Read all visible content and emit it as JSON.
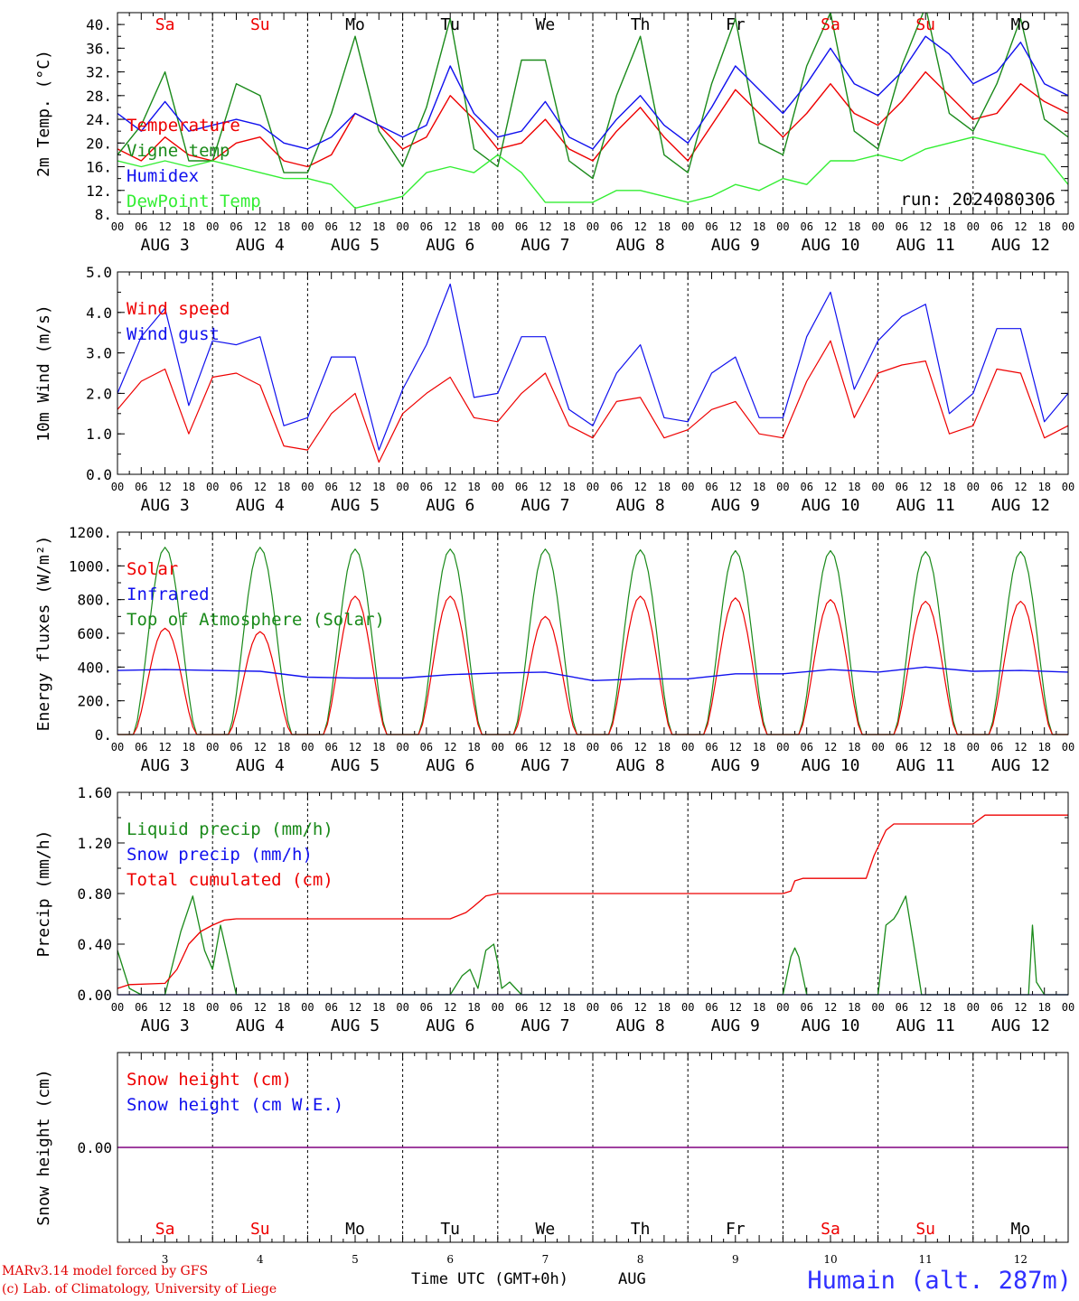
{
  "footer": {
    "model_line": "MARv3.14 model forced by GFS",
    "copyright_line": "(c) Lab. of Climatology, University of Liege",
    "xaxis_title": "Time UTC (GMT+0h)",
    "month": "AUG",
    "station": "Humain (alt. 287m)"
  },
  "colors": {
    "red": "#ee0000",
    "blue": "#1010ee",
    "green": "#1a8a1a",
    "lightgreen": "#33ee33",
    "purple": "#800080",
    "weekend": "#ee0000",
    "weekday": "#000000"
  },
  "time_axis": {
    "hour_ticks": [
      "00",
      "06",
      "12",
      "18"
    ],
    "last_tick": "00",
    "dates": [
      "AUG 3",
      "AUG 4",
      "AUG 5",
      "AUG 6",
      "AUG 7",
      "AUG 8",
      "AUG 9",
      "AUG 10",
      "AUG 11",
      "AUG 12"
    ],
    "weekdays": [
      "Sa",
      "Su",
      "Mo",
      "Tu",
      "We",
      "Th",
      "Fr",
      "Sa",
      "Su",
      "Mo"
    ],
    "weekend": [
      true,
      true,
      false,
      false,
      false,
      false,
      false,
      true,
      true,
      false
    ],
    "day_numbers": [
      "3",
      "4",
      "5",
      "6",
      "7",
      "8",
      "9",
      "10",
      "11",
      "12"
    ]
  },
  "chart_data": [
    {
      "type": "line",
      "ylabel": "2m Temp. (°C)",
      "ylim": [
        8,
        42
      ],
      "yticks": [
        "8.",
        "12.",
        "16.",
        "20.",
        "24.",
        "28.",
        "32.",
        "36.",
        "40."
      ],
      "ytick_values": [
        8,
        12,
        16,
        20,
        24,
        28,
        32,
        36,
        40
      ],
      "annotation": "run: 2024080306",
      "x_unit": "hours since AUG 3 00 UTC",
      "series": [
        {
          "name": "Temperature",
          "color": "red",
          "x": [
            0,
            6,
            12,
            18,
            24,
            30,
            36,
            42,
            48,
            54,
            60,
            66,
            72,
            78,
            84,
            90,
            96,
            102,
            108,
            114,
            120,
            126,
            132,
            138,
            144,
            150,
            156,
            162,
            168,
            174,
            180,
            186,
            192,
            198,
            204,
            210,
            216,
            222,
            228,
            234,
            240
          ],
          "values": [
            19,
            17,
            21,
            18,
            17,
            20,
            21,
            17,
            16,
            18,
            25,
            23,
            19,
            21,
            28,
            24,
            19,
            20,
            24,
            19,
            17,
            22,
            26,
            21,
            17,
            23,
            29,
            25,
            21,
            25,
            30,
            25,
            23,
            27,
            32,
            28,
            24,
            25,
            30,
            27,
            25
          ]
        },
        {
          "name": "Vigne temp",
          "color": "green",
          "x": [
            0,
            6,
            12,
            18,
            24,
            30,
            36,
            42,
            48,
            54,
            60,
            66,
            72,
            78,
            84,
            90,
            96,
            102,
            108,
            114,
            120,
            126,
            132,
            138,
            144,
            150,
            156,
            162,
            168,
            174,
            180,
            186,
            192,
            198,
            204,
            210,
            216,
            222,
            228,
            234,
            240
          ],
          "values": [
            18,
            23,
            32,
            17,
            17,
            30,
            28,
            15,
            15,
            25,
            38,
            22,
            16,
            26,
            41,
            19,
            16,
            34,
            34,
            17,
            14,
            28,
            38,
            18,
            15,
            30,
            41,
            20,
            18,
            33,
            42,
            22,
            19,
            33,
            43,
            25,
            22,
            30,
            41,
            24,
            21
          ]
        },
        {
          "name": "Humidex",
          "color": "blue",
          "x": [
            0,
            6,
            12,
            18,
            24,
            30,
            36,
            42,
            48,
            54,
            60,
            66,
            72,
            78,
            84,
            90,
            96,
            102,
            108,
            114,
            120,
            126,
            132,
            138,
            144,
            150,
            156,
            162,
            168,
            174,
            180,
            186,
            192,
            198,
            204,
            210,
            216,
            222,
            228,
            234,
            240
          ],
          "values": [
            25,
            22,
            27,
            22,
            23,
            24,
            23,
            20,
            19,
            21,
            25,
            23,
            21,
            23,
            33,
            25,
            21,
            22,
            27,
            21,
            19,
            24,
            28,
            23,
            20,
            26,
            33,
            29,
            25,
            30,
            36,
            30,
            28,
            32,
            38,
            35,
            30,
            32,
            37,
            30,
            28
          ]
        },
        {
          "name": "DewPoint Temp",
          "color": "lightgreen",
          "x": [
            0,
            6,
            12,
            18,
            24,
            30,
            36,
            42,
            48,
            54,
            60,
            66,
            72,
            78,
            84,
            90,
            96,
            102,
            108,
            114,
            120,
            126,
            132,
            138,
            144,
            150,
            156,
            162,
            168,
            174,
            180,
            186,
            192,
            198,
            204,
            210,
            216,
            222,
            228,
            234,
            240
          ],
          "values": [
            17,
            16,
            17,
            16,
            17,
            16,
            15,
            14,
            14,
            13,
            9,
            10,
            11,
            15,
            16,
            15,
            18,
            15,
            10,
            10,
            10,
            12,
            12,
            11,
            10,
            11,
            13,
            12,
            14,
            13,
            17,
            17,
            18,
            17,
            19,
            20,
            21,
            20,
            19,
            18,
            13
          ]
        }
      ]
    },
    {
      "type": "line",
      "ylabel": "10m Wind (m/s)",
      "ylim": [
        0,
        5
      ],
      "yticks": [
        "0.0",
        "1.0",
        "2.0",
        "3.0",
        "4.0",
        "5.0"
      ],
      "ytick_values": [
        0,
        1,
        2,
        3,
        4,
        5
      ],
      "series": [
        {
          "name": "Wind speed",
          "color": "red",
          "x": [
            0,
            6,
            12,
            18,
            24,
            30,
            36,
            42,
            48,
            54,
            60,
            66,
            72,
            78,
            84,
            90,
            96,
            102,
            108,
            114,
            120,
            126,
            132,
            138,
            144,
            150,
            156,
            162,
            168,
            174,
            180,
            186,
            192,
            198,
            204,
            210,
            216,
            222,
            228,
            234,
            240
          ],
          "values": [
            1.6,
            2.3,
            2.6,
            1.0,
            2.4,
            2.5,
            2.2,
            0.7,
            0.6,
            1.5,
            2.0,
            0.3,
            1.5,
            2.0,
            2.4,
            1.4,
            1.3,
            2.0,
            2.5,
            1.2,
            0.9,
            1.8,
            1.9,
            0.9,
            1.1,
            1.6,
            1.8,
            1.0,
            0.9,
            2.3,
            3.3,
            1.4,
            2.5,
            2.7,
            2.8,
            1.0,
            1.2,
            2.6,
            2.5,
            0.9,
            1.2
          ]
        },
        {
          "name": "Wind gust",
          "color": "blue",
          "x": [
            0,
            6,
            12,
            18,
            24,
            30,
            36,
            42,
            48,
            54,
            60,
            66,
            72,
            78,
            84,
            90,
            96,
            102,
            108,
            114,
            120,
            126,
            132,
            138,
            144,
            150,
            156,
            162,
            168,
            174,
            180,
            186,
            192,
            198,
            204,
            210,
            216,
            222,
            228,
            234,
            240
          ],
          "values": [
            2.0,
            3.4,
            4.1,
            1.7,
            3.3,
            3.2,
            3.4,
            1.2,
            1.4,
            2.9,
            2.9,
            0.6,
            2.1,
            3.2,
            4.7,
            1.9,
            2.0,
            3.4,
            3.4,
            1.6,
            1.2,
            2.5,
            3.2,
            1.4,
            1.3,
            2.5,
            2.9,
            1.4,
            1.4,
            3.4,
            4.5,
            2.1,
            3.3,
            3.9,
            4.2,
            1.5,
            2.0,
            3.6,
            3.6,
            1.3,
            2.0
          ]
        }
      ]
    },
    {
      "type": "line",
      "ylabel": "Energy fluxes (W/m²)",
      "ylim": [
        0,
        1200
      ],
      "yticks": [
        "0.",
        "200.",
        "400.",
        "600.",
        "800.",
        "1000.",
        "1200."
      ],
      "ytick_values": [
        0,
        200,
        400,
        600,
        800,
        1000,
        1200
      ],
      "series": [
        {
          "name": "Solar",
          "color": "red",
          "peaks": [
            630,
            610,
            820,
            820,
            700,
            820,
            810,
            800,
            790,
            790
          ]
        },
        {
          "name": "Infrared",
          "color": "blue",
          "x": [
            0,
            12,
            24,
            36,
            48,
            60,
            72,
            84,
            96,
            108,
            120,
            132,
            144,
            156,
            168,
            180,
            192,
            204,
            216,
            228,
            240
          ],
          "values": [
            380,
            385,
            380,
            375,
            340,
            335,
            335,
            355,
            365,
            370,
            320,
            330,
            330,
            360,
            360,
            385,
            370,
            400,
            375,
            380,
            370
          ]
        },
        {
          "name": "Top of Atmosphere (Solar)",
          "color": "green",
          "peaks": [
            1110,
            1110,
            1100,
            1100,
            1100,
            1095,
            1090,
            1090,
            1085,
            1085
          ]
        }
      ]
    },
    {
      "type": "line",
      "ylabel": "Precip (mm/h)",
      "ylim": [
        0,
        1.6
      ],
      "yticks": [
        "0.00",
        "0.40",
        "0.80",
        "1.20",
        "1.60"
      ],
      "ytick_values": [
        0,
        0.4,
        0.8,
        1.2,
        1.6
      ],
      "series": [
        {
          "name": "Liquid precip (mm/h)",
          "color": "green",
          "x": [
            0,
            3,
            6,
            12,
            16,
            19,
            22,
            24,
            26,
            30,
            60,
            84,
            87,
            89,
            91,
            93,
            95,
            96,
            97,
            99,
            102,
            168,
            170,
            171,
            172,
            174,
            192,
            194,
            196,
            197,
            199,
            201,
            203,
            216,
            230,
            231,
            232,
            234,
            240
          ],
          "values": [
            0.35,
            0.05,
            0.0,
            0.0,
            0.5,
            0.78,
            0.35,
            0.2,
            0.55,
            0.0,
            0.0,
            0.0,
            0.15,
            0.2,
            0.05,
            0.35,
            0.4,
            0.25,
            0.05,
            0.1,
            0.0,
            0.0,
            0.3,
            0.37,
            0.3,
            0.0,
            0.0,
            0.55,
            0.6,
            0.65,
            0.78,
            0.4,
            0.0,
            0.0,
            0.0,
            0.55,
            0.1,
            0.0,
            0.0
          ]
        },
        {
          "name": "Snow precip (mm/h)",
          "color": "blue",
          "x": [
            0,
            240
          ],
          "values": [
            0,
            0
          ]
        },
        {
          "name": "Total cumulated (cm)",
          "color": "red",
          "x": [
            0,
            3,
            12,
            15,
            18,
            21,
            24,
            27,
            30,
            84,
            88,
            90,
            93,
            96,
            120,
            168,
            170,
            171,
            173,
            180,
            189,
            191,
            194,
            196,
            216,
            219,
            240
          ],
          "values": [
            0.05,
            0.08,
            0.09,
            0.2,
            0.4,
            0.5,
            0.55,
            0.59,
            0.6,
            0.6,
            0.65,
            0.7,
            0.78,
            0.8,
            0.8,
            0.8,
            0.82,
            0.9,
            0.92,
            0.92,
            0.92,
            1.1,
            1.3,
            1.35,
            1.35,
            1.42,
            1.42
          ]
        }
      ]
    },
    {
      "type": "line",
      "ylabel": "Snow height (cm)",
      "ytick_values": [
        0
      ],
      "yticks": [
        "0.00"
      ],
      "series": [
        {
          "name": "Snow height (cm)",
          "color": "red",
          "x": [
            0,
            240
          ],
          "values": [
            0,
            0
          ]
        },
        {
          "name": "Snow height (cm W.E.)",
          "color": "blue",
          "x": [
            0,
            240
          ],
          "values": [
            0,
            0
          ]
        }
      ]
    }
  ]
}
